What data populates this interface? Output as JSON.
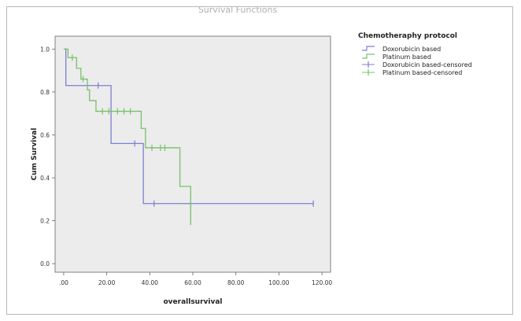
{
  "chart_data": {
    "type": "line",
    "title": "Survival Functions",
    "xlabel": "overallsurvival",
    "ylabel": "Cum Survival",
    "xlim": [
      -4,
      124
    ],
    "ylim": [
      -0.04,
      1.06
    ],
    "x_ticks": [
      0,
      20,
      40,
      60,
      80,
      100,
      120
    ],
    "x_tick_labels": [
      ".00",
      "20.00",
      "40.00",
      "60.00",
      "80.00",
      "100.00",
      "120.00"
    ],
    "y_ticks": [
      0,
      0.2,
      0.4,
      0.6,
      0.8,
      1.0
    ],
    "y_tick_labels": [
      "0.0",
      "0.2",
      "0.4",
      "0.6",
      "0.8",
      "1.0"
    ],
    "grid": false,
    "legend": {
      "title": "Chemotheraphy protocol",
      "position": "right",
      "entries": [
        "Doxorubicin based",
        "Platinum based",
        "Doxorubicin based-censored",
        "Platinum based-censored"
      ]
    },
    "colors": {
      "doxorubicin": "#7b7fd1",
      "platinum": "#77c16a",
      "plot_bg": "#ececec"
    },
    "series": [
      {
        "name": "Doxorubicin based",
        "steps": [
          [
            0,
            1.0
          ],
          [
            1,
            0.83
          ],
          [
            22,
            0.56
          ],
          [
            37,
            0.28
          ],
          [
            116,
            0.28
          ]
        ],
        "censored": [
          [
            16,
            0.83
          ],
          [
            33,
            0.56
          ],
          [
            42,
            0.28
          ],
          [
            116,
            0.28
          ]
        ]
      },
      {
        "name": "Platinum based",
        "steps": [
          [
            0,
            1.0
          ],
          [
            2,
            0.96
          ],
          [
            6,
            0.91
          ],
          [
            8,
            0.86
          ],
          [
            11,
            0.81
          ],
          [
            12,
            0.76
          ],
          [
            15,
            0.71
          ],
          [
            36,
            0.63
          ],
          [
            38,
            0.54
          ],
          [
            54,
            0.36
          ],
          [
            59,
            0.18
          ],
          [
            59,
            0.18
          ]
        ],
        "censored": [
          [
            4,
            0.96
          ],
          [
            9,
            0.86
          ],
          [
            18,
            0.71
          ],
          [
            21,
            0.71
          ],
          [
            25,
            0.71
          ],
          [
            28,
            0.71
          ],
          [
            31,
            0.71
          ],
          [
            41,
            0.54
          ],
          [
            45,
            0.54
          ],
          [
            47,
            0.54
          ],
          [
            59,
            0.27
          ]
        ],
        "end_x": 36
      }
    ]
  }
}
